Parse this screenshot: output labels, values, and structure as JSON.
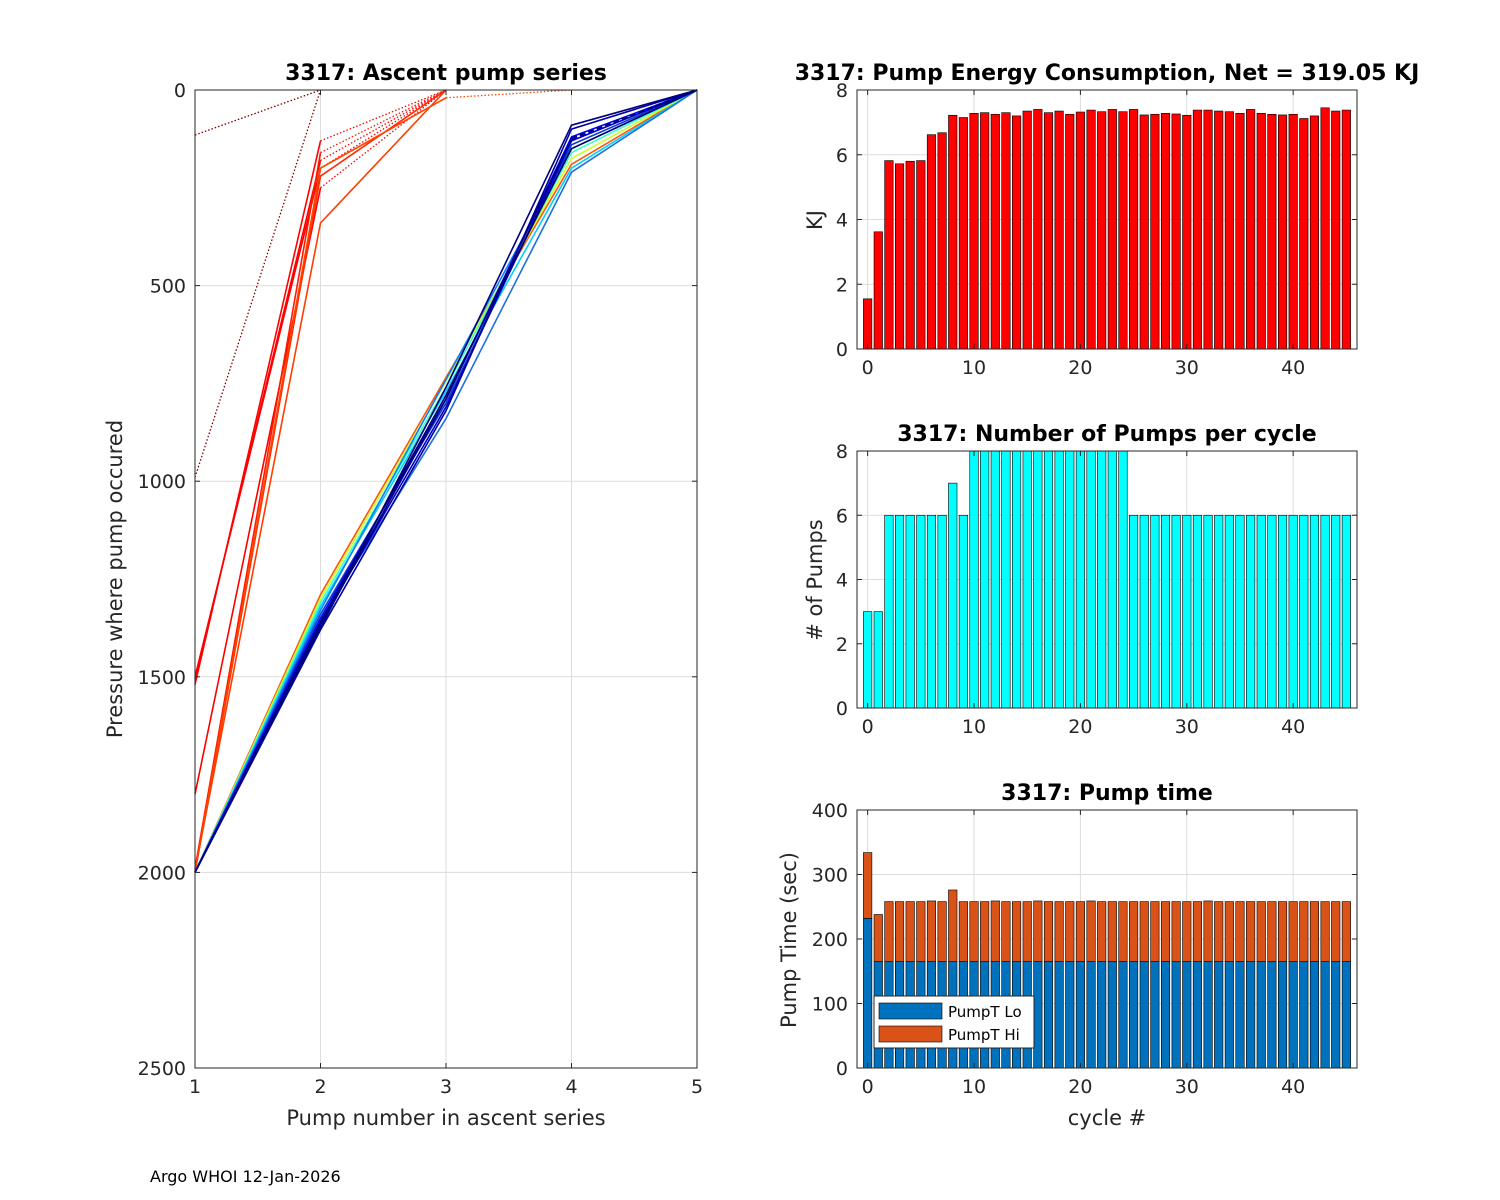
{
  "footer": "Argo WHOI 12-Jan-2026",
  "chart_data": [
    {
      "type": "line",
      "title": "3317: Ascent pump series",
      "xlabel": "Pump number in ascent series",
      "ylabel": "Pressure where pump occured",
      "xlim": [
        1,
        5
      ],
      "ylim": [
        0,
        2500
      ],
      "y_reversed": true,
      "xticks": [
        1,
        2,
        3,
        4,
        5
      ],
      "yticks": [
        0,
        500,
        1000,
        1500,
        2000,
        2500
      ],
      "grid": true,
      "colors": {
        "dark_red": "#7f0000",
        "red": "#ff0000",
        "orange_red": "#ff3d00",
        "navy": "#000080",
        "blue": "#0000ff",
        "royal": "#0f3ccf",
        "azure": "#0a7fff",
        "cyan": "#00d0ff",
        "yellow_green": "#c8ff30"
      },
      "series": [
        {
          "name": "c0",
          "style": "dotted",
          "color": "#7f0000",
          "x": [
            1,
            2
          ],
          "y": [
            115,
            0
          ]
        },
        {
          "name": "c1",
          "style": "dotted",
          "color": "#7f0000",
          "x": [
            1,
            2
          ],
          "y": [
            990,
            0
          ]
        },
        {
          "name": "c2",
          "style": "solid",
          "color": "#ff0000",
          "x": [
            1,
            2
          ],
          "y": [
            1520,
            130
          ]
        },
        {
          "name": "c2b",
          "style": "dotted",
          "color": "#ff0000",
          "x": [
            2,
            3
          ],
          "y": [
            130,
            0
          ]
        },
        {
          "name": "c3",
          "style": "solid",
          "color": "#ff0000",
          "x": [
            1,
            2
          ],
          "y": [
            1505,
            180
          ]
        },
        {
          "name": "c3b",
          "style": "dotted",
          "color": "#ff0000",
          "x": [
            2,
            3
          ],
          "y": [
            180,
            0
          ]
        },
        {
          "name": "c4",
          "style": "solid",
          "color": "#ff0000",
          "x": [
            1,
            2
          ],
          "y": [
            1500,
            200
          ]
        },
        {
          "name": "c4b",
          "style": "dotted",
          "color": "#ff0000",
          "x": [
            2,
            3
          ],
          "y": [
            200,
            0
          ]
        },
        {
          "name": "c5",
          "style": "solid",
          "color": "#ff0000",
          "x": [
            1,
            2
          ],
          "y": [
            1800,
            250
          ]
        },
        {
          "name": "c5b",
          "style": "dotted",
          "color": "#ff0000",
          "x": [
            2,
            3
          ],
          "y": [
            250,
            0
          ]
        },
        {
          "name": "c6",
          "style": "solid",
          "color": "#ff1a00",
          "x": [
            1,
            2
          ],
          "y": [
            1990,
            160
          ]
        },
        {
          "name": "c6b",
          "style": "dotted",
          "color": "#ff1a00",
          "x": [
            2,
            3
          ],
          "y": [
            160,
            0
          ]
        },
        {
          "name": "c7",
          "style": "solid",
          "color": "#ff3d00",
          "x": [
            1,
            2,
            3
          ],
          "y": [
            1995,
            340,
            0
          ]
        },
        {
          "name": "c8",
          "style": "solid",
          "color": "#ff2a00",
          "x": [
            1,
            2,
            3
          ],
          "y": [
            2000,
            220,
            0
          ]
        },
        {
          "name": "c9",
          "style": "solid",
          "color": "#ff4400",
          "x": [
            1,
            2,
            3
          ],
          "y": [
            2000,
            200,
            20
          ]
        },
        {
          "name": "c9b",
          "style": "dotted",
          "color": "#ff4400",
          "x": [
            3,
            4
          ],
          "y": [
            20,
            0
          ]
        },
        {
          "name": "c10",
          "style": "solid",
          "color": "#ff5500",
          "x": [
            1,
            2,
            3,
            4,
            5
          ],
          "y": [
            2000,
            1290,
            735,
            190,
            0
          ]
        },
        {
          "name": "c11",
          "style": "solid",
          "color": "#c8ff30",
          "x": [
            1,
            2,
            3,
            4,
            5
          ],
          "y": [
            2000,
            1300,
            745,
            175,
            0
          ]
        },
        {
          "name": "c12",
          "style": "solid",
          "color": "#40ffc0",
          "x": [
            1,
            2,
            3,
            4,
            5
          ],
          "y": [
            2000,
            1310,
            760,
            160,
            0
          ]
        },
        {
          "name": "c13",
          "style": "solid",
          "color": "#00d0ff",
          "x": [
            1,
            2,
            3,
            4,
            5
          ],
          "y": [
            2000,
            1320,
            770,
            200,
            0
          ]
        },
        {
          "name": "c14",
          "style": "solid",
          "color": "#0a7fff",
          "x": [
            1,
            2,
            3,
            4,
            5
          ],
          "y": [
            2000,
            1330,
            740,
            150,
            0
          ]
        },
        {
          "name": "c15",
          "style": "solid",
          "color": "#1f6fe0",
          "x": [
            1,
            2,
            3,
            4,
            5
          ],
          "y": [
            2000,
            1355,
            840,
            210,
            0
          ]
        },
        {
          "name": "c16",
          "style": "solid",
          "color": "#0f3ccf",
          "x": [
            1,
            2,
            3,
            4,
            5
          ],
          "y": [
            2000,
            1340,
            800,
            140,
            0
          ]
        },
        {
          "name": "c17",
          "style": "solid",
          "color": "#0000ff",
          "x": [
            1,
            2,
            3,
            4,
            5
          ],
          "y": [
            2000,
            1350,
            790,
            120,
            0
          ]
        },
        {
          "name": "c18",
          "style": "solid",
          "color": "#0000cc",
          "x": [
            1,
            2,
            3,
            4,
            5
          ],
          "y": [
            2000,
            1365,
            810,
            130,
            0
          ]
        },
        {
          "name": "c19",
          "style": "solid",
          "color": "#0000a0",
          "x": [
            1,
            2,
            3,
            4,
            5
          ],
          "y": [
            2000,
            1380,
            820,
            100,
            0
          ]
        },
        {
          "name": "c20",
          "style": "solid",
          "color": "#000080",
          "x": [
            1,
            2,
            3,
            4,
            5
          ],
          "y": [
            2000,
            1375,
            760,
            90,
            0
          ]
        },
        {
          "name": "c21",
          "style": "solid",
          "color": "#000070",
          "x": [
            1,
            2,
            3,
            4,
            5
          ],
          "y": [
            2000,
            1360,
            780,
            150,
            0
          ]
        },
        {
          "name": "c22",
          "style": "solid",
          "color": "#00008b",
          "x": [
            1,
            2,
            3,
            4
          ],
          "y": [
            2000,
            1370,
            790,
            125
          ]
        },
        {
          "name": "c22b",
          "style": "dashed",
          "color": "#00008b",
          "x": [
            4,
            5
          ],
          "y": [
            125,
            0
          ]
        }
      ]
    },
    {
      "type": "bar",
      "title": "3317: Pump Energy Consumption,  Net = 319.05 KJ",
      "xlabel": "",
      "ylabel": "KJ",
      "xlim": [
        -1,
        46
      ],
      "ylim": [
        0,
        8
      ],
      "xticks": [
        0,
        10,
        20,
        30,
        40
      ],
      "yticks": [
        0,
        2,
        4,
        6,
        8
      ],
      "grid": true,
      "color": "#ff0000",
      "x": [
        0,
        1,
        2,
        3,
        4,
        5,
        6,
        7,
        8,
        9,
        10,
        11,
        12,
        13,
        14,
        15,
        16,
        17,
        18,
        19,
        20,
        21,
        22,
        23,
        24,
        25,
        26,
        27,
        28,
        29,
        30,
        31,
        32,
        33,
        34,
        35,
        36,
        37,
        38,
        39,
        40,
        41,
        42,
        43,
        44,
        45
      ],
      "values": [
        1.55,
        3.62,
        5.82,
        5.72,
        5.8,
        5.82,
        6.62,
        6.68,
        7.22,
        7.15,
        7.28,
        7.3,
        7.25,
        7.3,
        7.2,
        7.35,
        7.4,
        7.3,
        7.35,
        7.25,
        7.32,
        7.38,
        7.33,
        7.4,
        7.33,
        7.4,
        7.23,
        7.25,
        7.28,
        7.26,
        7.22,
        7.38,
        7.38,
        7.35,
        7.33,
        7.28,
        7.4,
        7.28,
        7.25,
        7.23,
        7.25,
        7.12,
        7.2,
        7.45,
        7.35,
        7.38
      ]
    },
    {
      "type": "bar",
      "title": "3317: Number of Pumps per cycle",
      "xlabel": "",
      "ylabel": "# of Pumps",
      "xlim": [
        -1,
        46
      ],
      "ylim": [
        0,
        8
      ],
      "xticks": [
        0,
        10,
        20,
        30,
        40
      ],
      "yticks": [
        0,
        2,
        4,
        6,
        8
      ],
      "grid": true,
      "color": "#00ffff",
      "x": [
        0,
        1,
        2,
        3,
        4,
        5,
        6,
        7,
        8,
        9,
        10,
        11,
        12,
        13,
        14,
        15,
        16,
        17,
        18,
        19,
        20,
        21,
        22,
        23,
        24,
        25,
        26,
        27,
        28,
        29,
        30,
        31,
        32,
        33,
        34,
        35,
        36,
        37,
        38,
        39,
        40,
        41,
        42,
        43,
        44,
        45
      ],
      "values": [
        3,
        3,
        6,
        6,
        6,
        6,
        6,
        6,
        7,
        6,
        8,
        8,
        8,
        8,
        8,
        8,
        8,
        8,
        8,
        8,
        8,
        8,
        8,
        8,
        8,
        6,
        6,
        6,
        6,
        6,
        6,
        6,
        6,
        6,
        6,
        6,
        6,
        6,
        6,
        6,
        6,
        6,
        6,
        6,
        6,
        6
      ]
    },
    {
      "type": "bar",
      "stacked": true,
      "title": "3317: Pump time",
      "xlabel": "cycle #",
      "ylabel": "Pump Time (sec)",
      "xlim": [
        -1,
        46
      ],
      "ylim": [
        0,
        400
      ],
      "xticks": [
        0,
        10,
        20,
        30,
        40
      ],
      "yticks": [
        0,
        100,
        200,
        300,
        400
      ],
      "grid": true,
      "legend_position": "bottom-left",
      "x": [
        0,
        1,
        2,
        3,
        4,
        5,
        6,
        7,
        8,
        9,
        10,
        11,
        12,
        13,
        14,
        15,
        16,
        17,
        18,
        19,
        20,
        21,
        22,
        23,
        24,
        25,
        26,
        27,
        28,
        29,
        30,
        31,
        32,
        33,
        34,
        35,
        36,
        37,
        38,
        39,
        40,
        41,
        42,
        43,
        44,
        45
      ],
      "series": [
        {
          "name": "PumpT Lo",
          "color": "#0072bd",
          "values": [
            232,
            165,
            165,
            165,
            165,
            165,
            165,
            165,
            165,
            165,
            165,
            165,
            165,
            165,
            165,
            165,
            165,
            165,
            165,
            165,
            165,
            165,
            165,
            165,
            165,
            165,
            165,
            165,
            165,
            165,
            165,
            165,
            165,
            165,
            165,
            165,
            165,
            165,
            165,
            165,
            165,
            165,
            165,
            165,
            165,
            165
          ]
        },
        {
          "name": "PumpT Hi",
          "color": "#d95319",
          "values": [
            102,
            73,
            93,
            93,
            93,
            93,
            94,
            93,
            111,
            93,
            93,
            93,
            94,
            93,
            93,
            93,
            94,
            93,
            93,
            93,
            93,
            94,
            93,
            93,
            93,
            93,
            93,
            93,
            93,
            93,
            93,
            93,
            94,
            93,
            93,
            93,
            93,
            93,
            93,
            93,
            93,
            93,
            93,
            93,
            93,
            93
          ]
        }
      ]
    }
  ]
}
